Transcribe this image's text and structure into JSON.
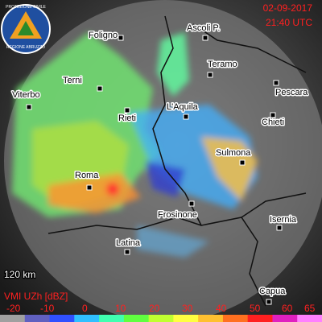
{
  "header": {
    "date": "02-09-2017",
    "time": "21:40 UTC"
  },
  "logo": {
    "top": "PROTEZIONE CIVILE",
    "bottom": "REGIONE ABRUZZO"
  },
  "cities": [
    "Foligno",
    "Ascoli P.",
    "Teramo",
    "Pescara",
    "Terni",
    "Viterbo",
    "Rieti",
    "L'Aquila",
    "Chieti",
    "Sulmona",
    "Roma",
    "Frosinone",
    "Isernia",
    "Latina",
    "Capua"
  ],
  "range_label": "120 km",
  "legend": {
    "title": "VMI UZh [dBZ]",
    "ticks": [
      -20,
      -10,
      0,
      10,
      20,
      30,
      40,
      50,
      60,
      65
    ],
    "colors": [
      "#a0a0a0",
      "#6060c0",
      "#3050ff",
      "#30c0ff",
      "#40ffb0",
      "#60ff40",
      "#c0ff30",
      "#ffff40",
      "#ffc030",
      "#ff7020",
      "#ff2020",
      "#e020c0",
      "#ff80ff"
    ]
  }
}
